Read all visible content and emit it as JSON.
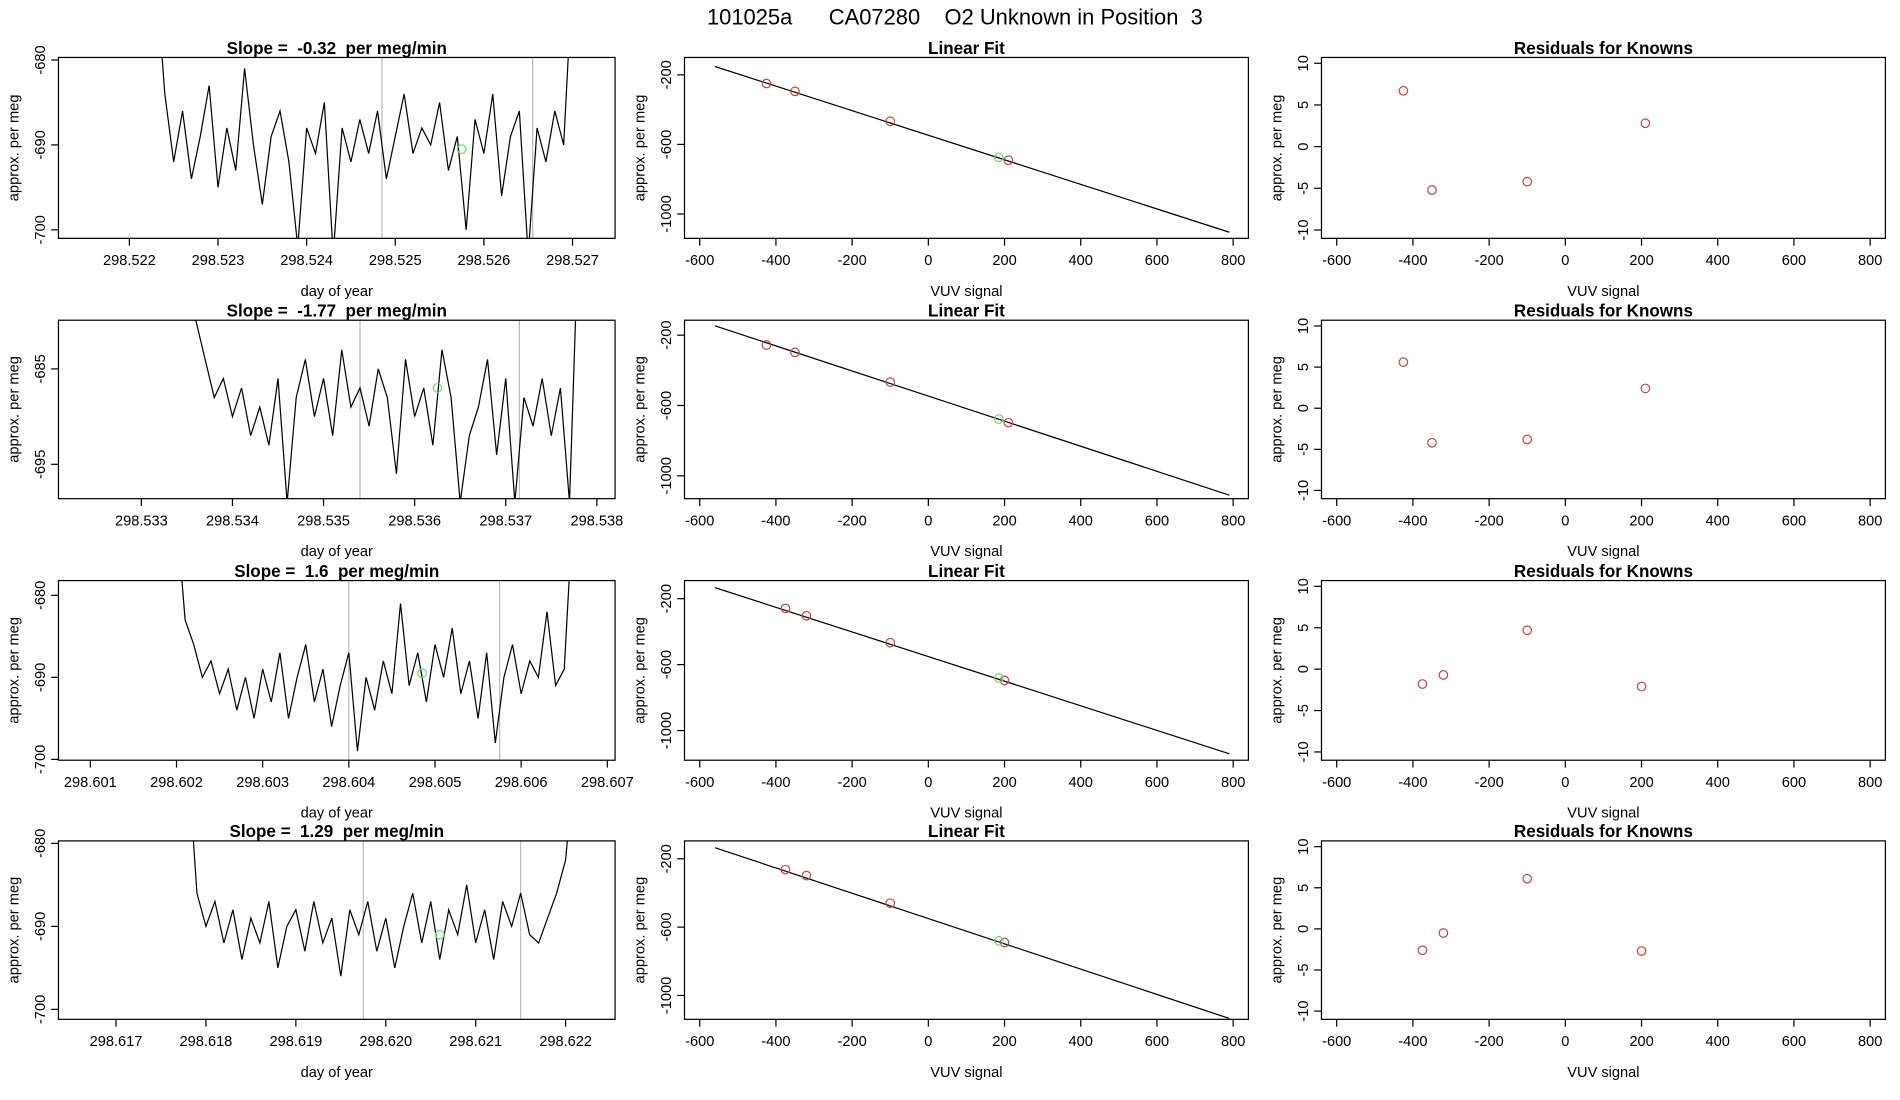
{
  "title": "101025a      CA07280    O2 Unknown in Position  3",
  "chart_data": [
    {
      "type": "line",
      "title": "Slope =  -0.32  per meg/min",
      "xlabel": "day of year",
      "ylabel": "approx. per meg",
      "xlim": [
        298.5212,
        298.52748
      ],
      "ylim": [
        -701,
        -679.7
      ],
      "xticks": [
        298.522,
        298.523,
        298.524,
        298.525,
        298.526,
        298.527
      ],
      "yticks": [
        -700,
        -690,
        -680
      ],
      "color": "#000000",
      "vline_color": "#bbbbbb",
      "vlines": [
        298.52485,
        298.52655
      ],
      "highlight": {
        "x": 298.52575,
        "y": -690.5,
        "color": "#66dd66"
      },
      "x": [
        298.5223,
        298.5224,
        298.5225,
        298.5226,
        298.5227,
        298.5228,
        298.5229,
        298.523,
        298.5231,
        298.5232,
        298.5233,
        298.5234,
        298.5235,
        298.5236,
        298.5237,
        298.5238,
        298.5239,
        298.524,
        298.5241,
        298.5242,
        298.5243,
        298.5244,
        298.5245,
        298.5246,
        298.5247,
        298.5248,
        298.5249,
        298.525,
        298.5251,
        298.5252,
        298.5253,
        298.5254,
        298.5255,
        298.5256,
        298.5257,
        298.5258,
        298.5259,
        298.526,
        298.5261,
        298.5262,
        298.5263,
        298.5264,
        298.5265,
        298.5266,
        298.5267,
        298.5268,
        298.5269,
        298.527
      ],
      "values": [
        -670,
        -684,
        -692,
        -686,
        -694,
        -689,
        -683,
        -695,
        -688,
        -693,
        -681,
        -690,
        -697,
        -689,
        -686,
        -692,
        -702,
        -688,
        -691,
        -685,
        -703,
        -688,
        -692,
        -687,
        -691,
        -686,
        -694,
        -689,
        -684,
        -691,
        -688,
        -690,
        -685,
        -693,
        -689,
        -700,
        -687,
        -691,
        -684,
        -696,
        -689,
        -686,
        -703,
        -688,
        -692,
        -686,
        -690,
        -670
      ]
    },
    {
      "type": "scatter",
      "title": "Linear Fit",
      "xlabel": "VUV signal",
      "ylabel": "approx. per meg",
      "xlim": [
        -640,
        840
      ],
      "ylim": [
        -1140,
        -100
      ],
      "xticks": [
        -600,
        -400,
        -200,
        0,
        200,
        400,
        600,
        800
      ],
      "yticks": [
        -1000,
        -600,
        -200
      ],
      "color": "#cc4444",
      "x": [
        -425,
        -350,
        -100,
        210
      ],
      "y": [
        -250,
        -295,
        -467,
        -691
      ],
      "fit_line": {
        "x": [
          -560,
          790
        ],
        "y": [
          -152,
          -1105
        ],
        "color": "#000000"
      },
      "highlight": {
        "x": 185,
        "y": -675,
        "color": "#66dd66"
      }
    },
    {
      "type": "scatter",
      "title": "Residuals for Knowns",
      "xlabel": "VUV signal",
      "ylabel": "approx. per meg",
      "xlim": [
        -640,
        840
      ],
      "ylim": [
        -11,
        10.7
      ],
      "xticks": [
        -600,
        -400,
        -200,
        0,
        200,
        400,
        600,
        800
      ],
      "yticks": [
        -10,
        -5,
        0,
        5,
        10
      ],
      "color": "#cc4444",
      "x": [
        -425,
        -350,
        -100,
        210
      ],
      "y": [
        6.7,
        -5.2,
        -4.2,
        2.8
      ]
    },
    {
      "type": "line",
      "title": "Slope =  -1.77  per meg/min",
      "xlabel": "day of year",
      "ylabel": "approx. per meg",
      "xlim": [
        298.53209,
        298.5382
      ],
      "ylim": [
        -698.6,
        -679.9
      ],
      "xticks": [
        298.533,
        298.534,
        298.535,
        298.536,
        298.537,
        298.538
      ],
      "yticks": [
        -695,
        -685
      ],
      "color": "#000000",
      "vline_color": "#bbbbbb",
      "vlines": [
        298.5354,
        298.53715
      ],
      "highlight": {
        "x": 298.53625,
        "y": -687,
        "color": "#66dd66"
      },
      "x": [
        298.5335,
        298.5336,
        298.5337,
        298.5338,
        298.5339,
        298.534,
        298.5341,
        298.5342,
        298.5343,
        298.5344,
        298.5345,
        298.5346,
        298.5347,
        298.5348,
        298.5349,
        298.535,
        298.5351,
        298.5352,
        298.5353,
        298.5354,
        298.5355,
        298.5356,
        298.5357,
        298.5358,
        298.5359,
        298.536,
        298.5361,
        298.5362,
        298.5363,
        298.5364,
        298.5365,
        298.5366,
        298.5367,
        298.5368,
        298.5369,
        298.537,
        298.5371,
        298.5372,
        298.5373,
        298.5374,
        298.5375,
        298.5376,
        298.5377,
        298.5378
      ],
      "values": [
        -670,
        -680,
        -684,
        -688,
        -686,
        -690,
        -687,
        -692,
        -689,
        -693,
        -686,
        -699,
        -688,
        -684,
        -690,
        -686,
        -692,
        -683,
        -689,
        -687,
        -691,
        -685,
        -688,
        -696,
        -684,
        -690,
        -687,
        -693,
        -683,
        -688,
        -699,
        -692,
        -689,
        -684,
        -694,
        -686,
        -699,
        -688,
        -691,
        -686,
        -692,
        -687,
        -699,
        -670
      ]
    },
    {
      "type": "scatter",
      "title": "Linear Fit",
      "xlabel": "VUV signal",
      "ylabel": "approx. per meg",
      "xlim": [
        -640,
        840
      ],
      "ylim": [
        -1130,
        -115
      ],
      "xticks": [
        -600,
        -400,
        -200,
        0,
        200,
        400,
        600,
        800
      ],
      "yticks": [
        -1000,
        -600,
        -200
      ],
      "color": "#cc4444",
      "x": [
        -425,
        -350,
        -100,
        210
      ],
      "y": [
        -256,
        -298,
        -467,
        -698
      ],
      "fit_line": {
        "x": [
          -560,
          790
        ],
        "y": [
          -147,
          -1110
        ],
        "color": "#000000"
      },
      "highlight": {
        "x": 185,
        "y": -677,
        "color": "#66dd66"
      }
    },
    {
      "type": "scatter",
      "title": "Residuals for Knowns",
      "xlabel": "VUV signal",
      "ylabel": "approx. per meg",
      "xlim": [
        -640,
        840
      ],
      "ylim": [
        -11,
        10.7
      ],
      "xticks": [
        -600,
        -400,
        -200,
        0,
        200,
        400,
        600,
        800
      ],
      "yticks": [
        -10,
        -5,
        0,
        5,
        10
      ],
      "color": "#cc4444",
      "x": [
        -425,
        -350,
        -100,
        210
      ],
      "y": [
        5.6,
        -4.2,
        -3.8,
        2.4
      ]
    },
    {
      "type": "line",
      "title": "Slope =  1.6  per meg/min",
      "xlabel": "day of year",
      "ylabel": "approx. per meg",
      "xlim": [
        298.60063,
        298.60709
      ],
      "ylim": [
        -700.1,
        -678.2
      ],
      "xticks": [
        298.601,
        298.602,
        298.603,
        298.604,
        298.605,
        298.606,
        298.607
      ],
      "yticks": [
        -700,
        -690,
        -680
      ],
      "color": "#000000",
      "vline_color": "#bbbbbb",
      "vlines": [
        298.604,
        298.60575
      ],
      "highlight": {
        "x": 298.60485,
        "y": -689.5,
        "color": "#66dd66"
      },
      "x": [
        298.602,
        298.6021,
        298.6022,
        298.6023,
        298.6024,
        298.6025,
        298.6026,
        298.6027,
        298.6028,
        298.6029,
        298.603,
        298.6031,
        298.6032,
        298.6033,
        298.6034,
        298.6035,
        298.6036,
        298.6037,
        298.6038,
        298.6039,
        298.604,
        298.6041,
        298.6042,
        298.6043,
        298.6044,
        298.6045,
        298.6046,
        298.6047,
        298.6048,
        298.6049,
        298.605,
        298.6051,
        298.6052,
        298.6053,
        298.6054,
        298.6055,
        298.6056,
        298.6057,
        298.6058,
        298.6059,
        298.606,
        298.6061,
        298.6062,
        298.6063,
        298.6064,
        298.6065,
        298.6066
      ],
      "values": [
        -670,
        -683,
        -686,
        -690,
        -688,
        -692,
        -689,
        -694,
        -690,
        -695,
        -689,
        -693,
        -687,
        -695,
        -690,
        -686,
        -693,
        -689,
        -696,
        -691,
        -687,
        -699,
        -690,
        -694,
        -688,
        -692,
        -681,
        -691,
        -687,
        -693,
        -686,
        -690,
        -684,
        -692,
        -688,
        -695,
        -687,
        -698,
        -690,
        -686,
        -692,
        -688,
        -690,
        -682,
        -691,
        -689,
        -670
      ]
    },
    {
      "type": "scatter",
      "title": "Linear Fit",
      "xlabel": "VUV signal",
      "ylabel": "approx. per meg",
      "xlim": [
        -640,
        840
      ],
      "ylim": [
        -1180,
        -90
      ],
      "xticks": [
        -600,
        -400,
        -200,
        0,
        200,
        400,
        600,
        800
      ],
      "yticks": [
        -1000,
        -600,
        -200
      ],
      "color": "#cc4444",
      "x": [
        -375,
        -320,
        -100,
        200
      ],
      "y": [
        -259,
        -304,
        -467,
        -696
      ],
      "fit_line": {
        "x": [
          -560,
          790
        ],
        "y": [
          -133,
          -1141
        ],
        "color": "#000000"
      },
      "highlight": {
        "x": 185,
        "y": -681,
        "color": "#66dd66"
      }
    },
    {
      "type": "scatter",
      "title": "Residuals for Knowns",
      "xlabel": "VUV signal",
      "ylabel": "approx. per meg",
      "xlim": [
        -640,
        840
      ],
      "ylim": [
        -11,
        10.7
      ],
      "xticks": [
        -600,
        -400,
        -200,
        0,
        200,
        400,
        600,
        800
      ],
      "yticks": [
        -10,
        -5,
        0,
        5,
        10
      ],
      "color": "#cc4444",
      "x": [
        -375,
        -320,
        -100,
        200
      ],
      "y": [
        -1.8,
        -0.7,
        4.7,
        -2.1
      ]
    },
    {
      "type": "line",
      "title": "Slope =  1.29  per meg/min",
      "xlabel": "day of year",
      "ylabel": "approx. per meg",
      "xlim": [
        298.61636,
        298.62255
      ],
      "ylim": [
        -701.2,
        -679.7
      ],
      "xticks": [
        298.617,
        298.618,
        298.619,
        {
          "value": 298.62,
          "label": "298.620"
        },
        298.621,
        298.622
      ],
      "yticks": [
        -700,
        -690,
        -680
      ],
      "color": "#000000",
      "vline_color": "#bbbbbb",
      "vlines": [
        298.61975,
        298.6215
      ],
      "highlight": {
        "x": 298.6206,
        "y": -691,
        "color": "#66dd66"
      },
      "x": [
        298.6178,
        298.6179,
        298.618,
        298.6181,
        298.6182,
        298.6183,
        298.6184,
        298.6185,
        298.6186,
        298.6187,
        298.6188,
        298.6189,
        298.619,
        298.6191,
        298.6192,
        298.6193,
        298.6194,
        298.6195,
        298.6196,
        298.6197,
        298.6198,
        298.6199,
        298.62,
        298.6201,
        298.6202,
        298.6203,
        298.6204,
        298.6205,
        298.6206,
        298.6207,
        298.6208,
        298.6209,
        298.621,
        298.6211,
        298.6212,
        298.6213,
        298.6214,
        298.6215,
        298.6216,
        298.6217,
        298.6218,
        298.6219,
        298.622,
        298.6221
      ],
      "values": [
        -670,
        -686,
        -690,
        -687,
        -692,
        -688,
        -694,
        -689,
        -692,
        -687,
        -695,
        -690,
        -688,
        -693,
        -687,
        -692,
        -689,
        -696,
        -688,
        -691,
        -687,
        -693,
        -689,
        -695,
        -690,
        -686,
        -692,
        -687,
        -694,
        -688,
        -691,
        -685,
        -692,
        -688,
        -694,
        -687,
        -690,
        -686,
        -691,
        -692,
        -689,
        -686,
        -682,
        -670
      ]
    },
    {
      "type": "scatter",
      "title": "Linear Fit",
      "xlabel": "VUV signal",
      "ylabel": "approx. per meg",
      "xlim": [
        -640,
        840
      ],
      "ylim": [
        -1140,
        -95
      ],
      "xticks": [
        -600,
        -400,
        -200,
        0,
        200,
        400,
        600,
        800
      ],
      "yticks": [
        -1000,
        -600,
        -200
      ],
      "color": "#cc4444",
      "x": [
        -375,
        -320,
        -100,
        200
      ],
      "y": [
        -263,
        -298,
        -460,
        -690
      ],
      "fit_line": {
        "x": [
          -560,
          790
        ],
        "y": [
          -135,
          -1135
        ],
        "color": "#000000"
      },
      "highlight": {
        "x": 185,
        "y": -680,
        "color": "#66dd66"
      }
    },
    {
      "type": "scatter",
      "title": "Residuals for Knowns",
      "xlabel": "VUV signal",
      "ylabel": "approx. per meg",
      "xlim": [
        -640,
        840
      ],
      "ylim": [
        -11,
        10.7
      ],
      "xticks": [
        -600,
        -400,
        -200,
        0,
        200,
        400,
        600,
        800
      ],
      "yticks": [
        -10,
        -5,
        0,
        5,
        10
      ],
      "color": "#cc4444",
      "x": [
        -375,
        -320,
        -100,
        200
      ],
      "y": [
        -2.6,
        -0.5,
        6.1,
        -2.7
      ]
    }
  ]
}
